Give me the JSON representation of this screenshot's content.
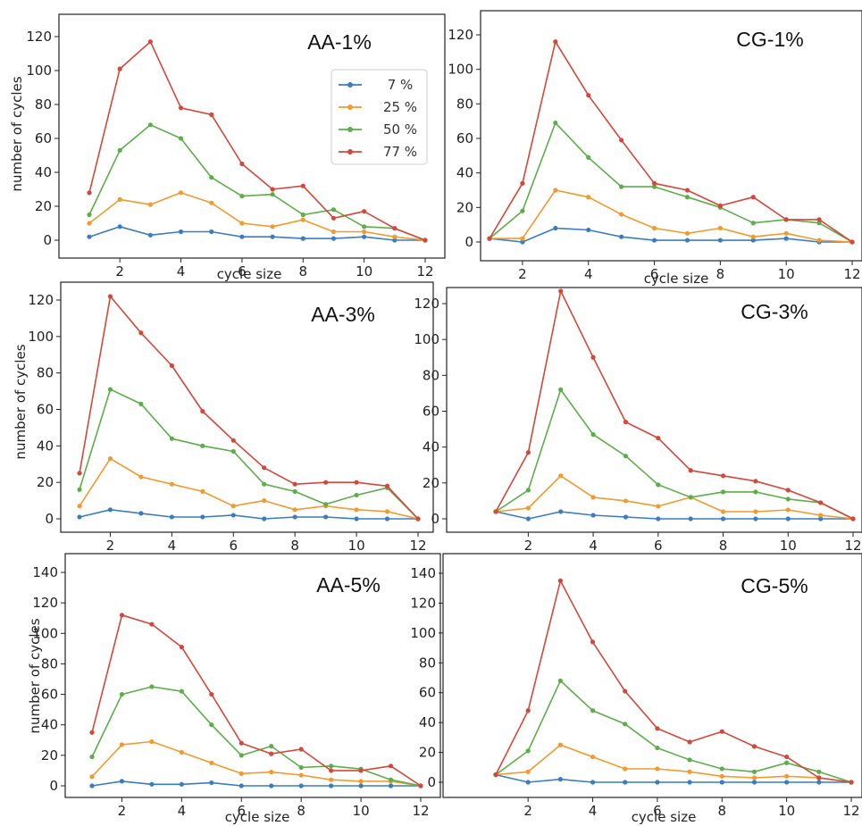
{
  "colors": {
    "7 %": "#3a7dbf",
    "25 %": "#f39a2e",
    "50 %": "#5cae4a",
    "77 %": "#d5473a"
  },
  "chart_data": [
    {
      "type": "line",
      "title": "AA-1%",
      "xlabel": "cycle size",
      "ylabel": "number of cycles",
      "x": [
        1,
        2,
        3,
        4,
        5,
        6,
        7,
        8,
        9,
        10,
        11,
        12
      ],
      "xticks": [
        2,
        4,
        6,
        8,
        10,
        12
      ],
      "ylim": [
        0,
        120
      ],
      "yticks": [
        0,
        20,
        40,
        60,
        80,
        100,
        120
      ],
      "legend": "upper-right",
      "series": [
        {
          "name": "7 %",
          "values": [
            2,
            8,
            3,
            5,
            5,
            2,
            2,
            1,
            1,
            2,
            0,
            0
          ]
        },
        {
          "name": "25 %",
          "values": [
            10,
            24,
            21,
            28,
            22,
            10,
            8,
            12,
            5,
            5,
            2,
            0
          ]
        },
        {
          "name": "50 %",
          "values": [
            15,
            53,
            68,
            60,
            37,
            26,
            27,
            15,
            18,
            8,
            7,
            0
          ]
        },
        {
          "name": "77 %",
          "values": [
            28,
            101,
            117,
            78,
            74,
            45,
            30,
            32,
            13,
            17,
            7,
            0
          ]
        }
      ]
    },
    {
      "type": "line",
      "title": "CG-1%",
      "xlabel": "cycle size",
      "ylabel": "",
      "x": [
        1,
        2,
        3,
        4,
        5,
        6,
        7,
        8,
        9,
        10,
        11,
        12
      ],
      "xticks": [
        2,
        4,
        6,
        8,
        10,
        12
      ],
      "ylim": [
        0,
        120
      ],
      "yticks": [
        0,
        20,
        40,
        60,
        80,
        100,
        120
      ],
      "series": [
        {
          "name": "7 %",
          "values": [
            2,
            0,
            8,
            7,
            3,
            1,
            1,
            1,
            1,
            2,
            0,
            0
          ]
        },
        {
          "name": "25 %",
          "values": [
            2,
            2,
            30,
            26,
            16,
            8,
            5,
            8,
            3,
            5,
            1,
            0
          ]
        },
        {
          "name": "50 %",
          "values": [
            2,
            18,
            69,
            49,
            32,
            32,
            26,
            20,
            11,
            13,
            11,
            0
          ]
        },
        {
          "name": "77 %",
          "values": [
            2,
            34,
            116,
            85,
            59,
            34,
            30,
            21,
            26,
            13,
            13,
            0
          ]
        }
      ]
    },
    {
      "type": "line",
      "title": "AA-3%",
      "xlabel": "",
      "ylabel": "number of cycles",
      "x": [
        1,
        2,
        3,
        4,
        5,
        6,
        7,
        8,
        9,
        10,
        11,
        12
      ],
      "xticks": [
        2,
        4,
        6,
        8,
        10,
        12
      ],
      "ylim": [
        0,
        120
      ],
      "yticks": [
        0,
        20,
        40,
        60,
        80,
        100,
        120
      ],
      "series": [
        {
          "name": "7 %",
          "values": [
            1,
            5,
            3,
            1,
            1,
            2,
            0,
            1,
            1,
            0,
            0,
            0
          ]
        },
        {
          "name": "25 %",
          "values": [
            7,
            33,
            23,
            19,
            15,
            7,
            10,
            5,
            7,
            5,
            4,
            0
          ]
        },
        {
          "name": "50 %",
          "values": [
            16,
            71,
            63,
            44,
            40,
            37,
            19,
            15,
            8,
            13,
            17,
            0
          ]
        },
        {
          "name": "77 %",
          "values": [
            25,
            122,
            102,
            84,
            59,
            43,
            28,
            19,
            20,
            20,
            18,
            0
          ]
        }
      ]
    },
    {
      "type": "line",
      "title": "CG-3%",
      "xlabel": "",
      "ylabel": "",
      "x": [
        1,
        2,
        3,
        4,
        5,
        6,
        7,
        8,
        9,
        10,
        11,
        12
      ],
      "xticks": [
        2,
        4,
        6,
        8,
        10,
        12
      ],
      "ylim": [
        0,
        120
      ],
      "yticks": [
        0,
        20,
        40,
        60,
        80,
        100,
        120
      ],
      "series": [
        {
          "name": "7 %",
          "values": [
            4,
            0,
            4,
            2,
            1,
            0,
            0,
            0,
            0,
            0,
            0,
            0
          ]
        },
        {
          "name": "25 %",
          "values": [
            4,
            6,
            24,
            12,
            10,
            7,
            12,
            4,
            4,
            5,
            2,
            0
          ]
        },
        {
          "name": "50 %",
          "values": [
            4,
            16,
            72,
            47,
            35,
            19,
            12,
            15,
            15,
            11,
            9,
            0
          ]
        },
        {
          "name": "77 %",
          "values": [
            4,
            37,
            127,
            90,
            54,
            45,
            27,
            24,
            21,
            16,
            9,
            0
          ]
        }
      ]
    },
    {
      "type": "line",
      "title": "AA-5%",
      "xlabel": "cycle size",
      "ylabel": "number of cycles",
      "x": [
        1,
        2,
        3,
        4,
        5,
        6,
        7,
        8,
        9,
        10,
        11,
        12
      ],
      "xticks": [
        2,
        4,
        6,
        8,
        10,
        12
      ],
      "ylim": [
        0,
        140
      ],
      "yticks": [
        0,
        20,
        40,
        60,
        80,
        100,
        120,
        140
      ],
      "series": [
        {
          "name": "7 %",
          "values": [
            0,
            3,
            1,
            1,
            2,
            0,
            0,
            0,
            0,
            0,
            0,
            0
          ]
        },
        {
          "name": "25 %",
          "values": [
            6,
            27,
            29,
            22,
            15,
            8,
            9,
            7,
            4,
            3,
            3,
            0
          ]
        },
        {
          "name": "50 %",
          "values": [
            19,
            60,
            65,
            62,
            40,
            20,
            26,
            12,
            13,
            11,
            4,
            0
          ]
        },
        {
          "name": "77 %",
          "values": [
            35,
            112,
            106,
            91,
            60,
            28,
            21,
            24,
            10,
            10,
            13,
            0
          ]
        }
      ]
    },
    {
      "type": "line",
      "title": "CG-5%",
      "xlabel": "cycle size",
      "ylabel": "",
      "x": [
        1,
        2,
        3,
        4,
        5,
        6,
        7,
        8,
        9,
        10,
        11,
        12
      ],
      "xticks": [
        2,
        4,
        6,
        8,
        10,
        12
      ],
      "ylim": [
        0,
        140
      ],
      "yticks": [
        0,
        20,
        40,
        60,
        80,
        100,
        120,
        140
      ],
      "series": [
        {
          "name": "7 %",
          "values": [
            5,
            0,
            2,
            0,
            0,
            0,
            0,
            0,
            0,
            0,
            0,
            0
          ]
        },
        {
          "name": "25 %",
          "values": [
            5,
            7,
            25,
            17,
            9,
            9,
            7,
            4,
            3,
            4,
            3,
            0
          ]
        },
        {
          "name": "50 %",
          "values": [
            5,
            21,
            68,
            48,
            39,
            23,
            15,
            9,
            7,
            13,
            7,
            0
          ]
        },
        {
          "name": "77 %",
          "values": [
            5,
            48,
            135,
            94,
            61,
            36,
            27,
            34,
            24,
            17,
            3,
            0
          ]
        }
      ]
    }
  ]
}
